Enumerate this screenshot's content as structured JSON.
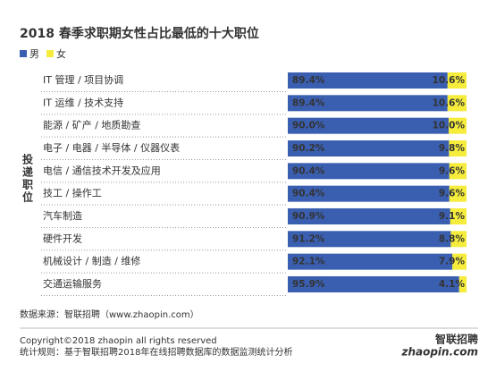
{
  "chart_data": {
    "type": "stacked-bar-horizontal",
    "title": "2018 春季求职期女性占比最低的十大职位",
    "y_label": "投递职位",
    "categories": [
      "IT 管理 / 项目协调",
      "IT 运维 / 技术支持",
      "能源 / 矿产 / 地质勘查",
      "电子 / 电器 / 半导体 / 仪器仪表",
      "电信 / 通信技术开发及应用",
      "技工 / 操作工",
      "汽车制造",
      "硬件开发",
      "机械设计 / 制造 / 维修",
      "交通运输服务"
    ],
    "series": [
      {
        "name": "男",
        "color": "#3a5fb0",
        "values": [
          89.4,
          89.4,
          90.0,
          90.2,
          90.4,
          90.4,
          90.9,
          91.2,
          92.1,
          95.9
        ],
        "value_labels": [
          "89.4%",
          "89.4%",
          "90.0%",
          "90.2%",
          "90.4%",
          "90.4%",
          "90.9%",
          "91.2%",
          "92.1%",
          "95.9%"
        ]
      },
      {
        "name": "女",
        "color": "#f5ec3c",
        "values": [
          10.6,
          10.6,
          10.0,
          9.8,
          9.6,
          9.6,
          9.1,
          8.8,
          7.9,
          4.1
        ],
        "value_labels": [
          "10.6%",
          "10.6%",
          "10.0%",
          "9.8%",
          "9.6%",
          "9.6%",
          "9.1%",
          "8.8%",
          "7.9%",
          "4.1%"
        ]
      }
    ],
    "source": "数据来源：智联招聘（www.zhaopin.com）",
    "copyright": "Copyright©2018 zhaopin all rights reserved",
    "note": "统计规则：基于智联招聘2018年在线招聘数据库的数据监测统计分析",
    "logo_name": "智联招聘",
    "logo_url": "zhaopin.com"
  }
}
